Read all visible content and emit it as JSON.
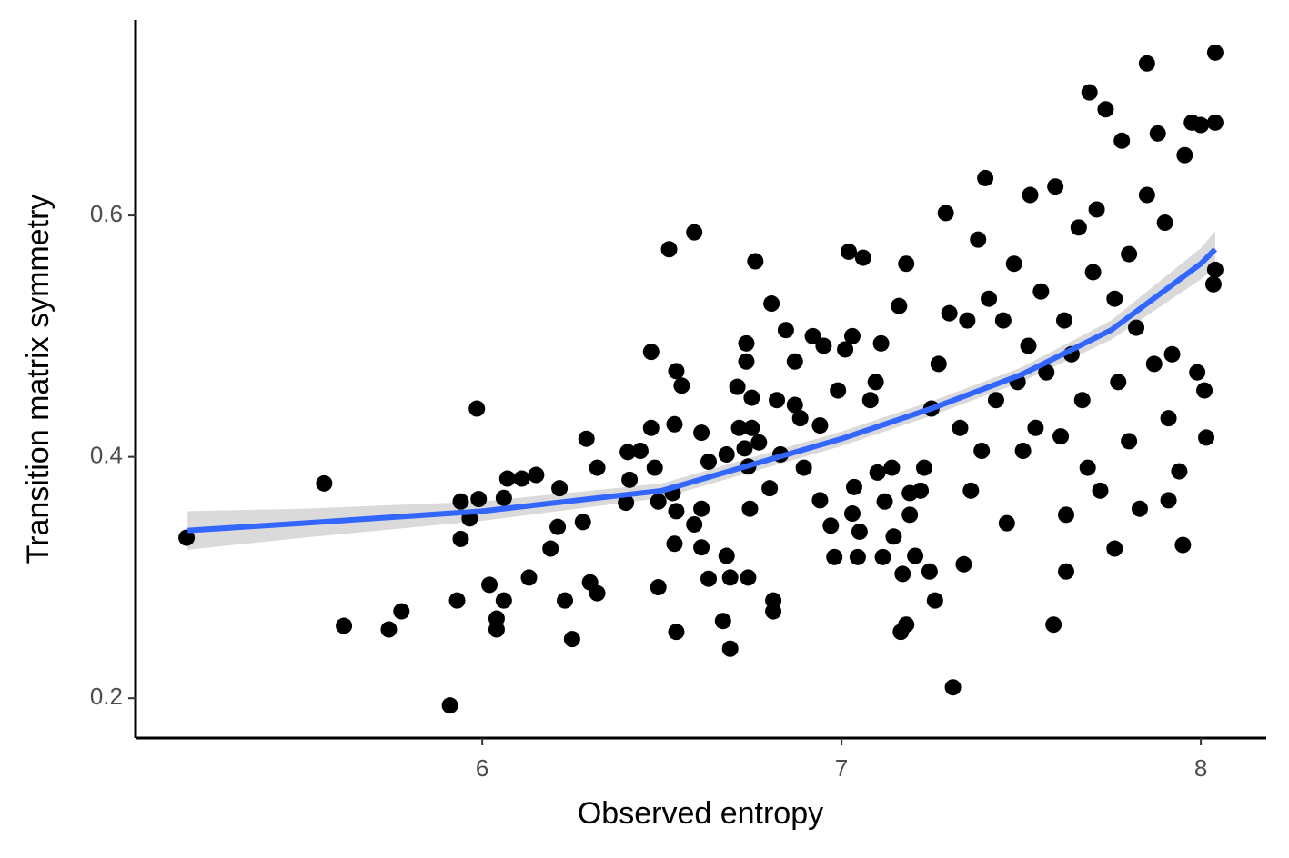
{
  "chart_data": {
    "type": "scatter",
    "x_label": "Observed entropy",
    "y_label": "Transition matrix symmetry",
    "xlim": [
      5.035,
      8.182
    ],
    "ylim": [
      0.167,
      0.762
    ],
    "xticks": [
      6,
      7,
      8
    ],
    "yticks": [
      0.2,
      0.4,
      0.6
    ],
    "point_color": "#000000",
    "x": [
      5.177,
      5.56,
      5.615,
      5.74,
      5.775,
      5.91,
      5.93,
      5.94,
      5.94,
      5.965,
      5.985,
      5.99,
      6.02,
      6.04,
      6.04,
      6.06,
      6.06,
      6.07,
      6.11,
      6.13,
      6.15,
      6.19,
      6.21,
      6.215,
      6.23,
      6.25,
      6.28,
      6.29,
      6.3,
      6.32,
      6.32,
      6.405,
      6.4,
      6.41,
      6.44,
      6.47,
      6.47,
      6.48,
      6.49,
      6.49,
      6.52,
      6.53,
      6.535,
      6.535,
      6.54,
      6.54,
      6.54,
      6.555,
      6.59,
      6.59,
      6.61,
      6.61,
      6.61,
      6.63,
      6.63,
      6.67,
      6.68,
      6.68,
      6.69,
      6.69,
      6.71,
      6.715,
      6.73,
      6.735,
      6.735,
      6.74,
      6.74,
      6.745,
      6.75,
      6.75,
      6.76,
      6.77,
      6.8,
      6.805,
      6.81,
      6.81,
      6.82,
      6.83,
      6.845,
      6.87,
      6.87,
      6.885,
      6.895,
      6.92,
      6.94,
      6.94,
      6.95,
      6.97,
      6.98,
      6.99,
      7.01,
      7.02,
      7.03,
      7.03,
      7.035,
      7.045,
      7.05,
      7.06,
      7.08,
      7.095,
      7.1,
      7.11,
      7.115,
      7.12,
      7.14,
      7.145,
      7.16,
      7.165,
      7.17,
      7.18,
      7.18,
      7.19,
      7.19,
      7.205,
      7.22,
      7.23,
      7.245,
      7.25,
      7.26,
      7.27,
      7.29,
      7.3,
      7.31,
      7.33,
      7.34,
      7.35,
      7.36,
      7.38,
      7.39,
      7.4,
      7.41,
      7.43,
      7.45,
      7.46,
      7.48,
      7.49,
      7.505,
      7.52,
      7.525,
      7.54,
      7.555,
      7.57,
      7.59,
      7.595,
      7.61,
      7.62,
      7.625,
      7.625,
      7.64,
      7.66,
      7.67,
      7.685,
      7.69,
      7.7,
      7.71,
      7.72,
      7.735,
      7.76,
      7.76,
      7.77,
      7.78,
      7.8,
      7.8,
      7.82,
      7.83,
      7.85,
      7.85,
      7.87,
      7.88,
      7.9,
      7.91,
      7.91,
      7.92,
      7.94,
      7.95,
      7.955,
      7.975,
      7.99,
      8.0,
      8.01,
      8.015,
      8.04,
      8.04,
      8.04,
      8.035
    ],
    "y": [
      0.333,
      0.378,
      0.26,
      0.257,
      0.272,
      0.194,
      0.281,
      0.363,
      0.332,
      0.349,
      0.44,
      0.365,
      0.294,
      0.266,
      0.257,
      0.281,
      0.366,
      0.382,
      0.382,
      0.3,
      0.385,
      0.324,
      0.342,
      0.374,
      0.281,
      0.249,
      0.346,
      0.415,
      0.296,
      0.287,
      0.391,
      0.404,
      0.362,
      0.381,
      0.405,
      0.424,
      0.487,
      0.391,
      0.292,
      0.363,
      0.572,
      0.37,
      0.427,
      0.328,
      0.355,
      0.255,
      0.471,
      0.459,
      0.586,
      0.344,
      0.42,
      0.357,
      0.325,
      0.396,
      0.299,
      0.264,
      0.318,
      0.402,
      0.241,
      0.3,
      0.458,
      0.424,
      0.407,
      0.494,
      0.479,
      0.3,
      0.392,
      0.357,
      0.449,
      0.424,
      0.562,
      0.412,
      0.374,
      0.527,
      0.281,
      0.272,
      0.447,
      0.402,
      0.505,
      0.479,
      0.443,
      0.432,
      0.391,
      0.5,
      0.426,
      0.364,
      0.492,
      0.343,
      0.317,
      0.455,
      0.489,
      0.57,
      0.5,
      0.353,
      0.375,
      0.317,
      0.338,
      0.565,
      0.447,
      0.462,
      0.387,
      0.494,
      0.317,
      0.363,
      0.391,
      0.334,
      0.525,
      0.255,
      0.303,
      0.56,
      0.261,
      0.37,
      0.352,
      0.318,
      0.372,
      0.391,
      0.305,
      0.44,
      0.281,
      0.477,
      0.602,
      0.519,
      0.209,
      0.424,
      0.311,
      0.513,
      0.372,
      0.58,
      0.405,
      0.631,
      0.531,
      0.447,
      0.513,
      0.345,
      0.56,
      0.462,
      0.405,
      0.492,
      0.617,
      0.424,
      0.537,
      0.47,
      0.261,
      0.624,
      0.417,
      0.513,
      0.305,
      0.352,
      0.485,
      0.59,
      0.447,
      0.391,
      0.702,
      0.553,
      0.605,
      0.372,
      0.688,
      0.531,
      0.324,
      0.462,
      0.662,
      0.568,
      0.413,
      0.507,
      0.357,
      0.726,
      0.617,
      0.477,
      0.668,
      0.594,
      0.432,
      0.364,
      0.485,
      0.388,
      0.327,
      0.65,
      0.677,
      0.47,
      0.675,
      0.455,
      0.416,
      0.677,
      0.555,
      0.735,
      0.543
    ],
    "fit": {
      "color": "#3366ff",
      "band_color": "#d3d3d3",
      "x": [
        5.18,
        5.5,
        6,
        6.5,
        7,
        7.25,
        7.5,
        7.75,
        8,
        8.04
      ],
      "y": [
        0.339,
        0.345,
        0.355,
        0.372,
        0.415,
        0.44,
        0.468,
        0.505,
        0.56,
        0.572
      ],
      "lower": [
        0.323,
        0.333,
        0.347,
        0.366,
        0.409,
        0.434,
        0.462,
        0.497,
        0.547,
        0.557
      ],
      "upper": [
        0.355,
        0.357,
        0.363,
        0.378,
        0.421,
        0.446,
        0.474,
        0.513,
        0.573,
        0.587
      ]
    }
  }
}
